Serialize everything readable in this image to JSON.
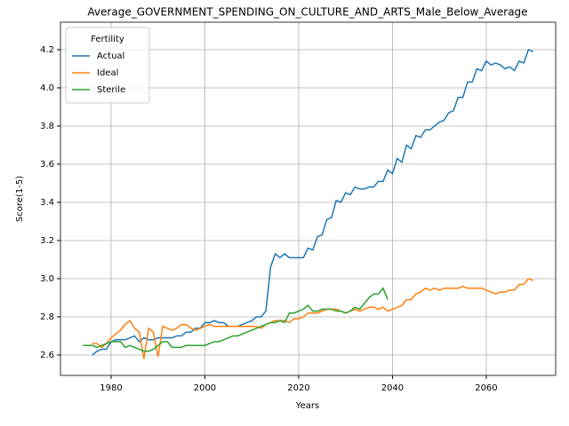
{
  "chart_data": {
    "type": "line",
    "title": "Average_GOVERNMENT_SPENDING_ON_CULTURE_AND_ARTS_Male_Below_Average",
    "x_label": "Years",
    "y_label": "Score(1-5)",
    "legend_title": "Fertility",
    "legend_position": "upper left",
    "grid": true,
    "x": [
      1974,
      1975,
      1976,
      1977,
      1978,
      1979,
      1980,
      1981,
      1982,
      1983,
      1984,
      1985,
      1986,
      1987,
      1988,
      1989,
      1990,
      1991,
      1992,
      1993,
      1994,
      1995,
      1996,
      1997,
      1998,
      1999,
      2000,
      2001,
      2002,
      2003,
      2004,
      2005,
      2006,
      2007,
      2008,
      2009,
      2010,
      2011,
      2012,
      2013,
      2014,
      2015,
      2016,
      2017,
      2018,
      2019,
      2020,
      2021,
      2022,
      2023,
      2024,
      2025,
      2026,
      2027,
      2028,
      2029,
      2030,
      2031,
      2032,
      2033,
      2034,
      2035,
      2036,
      2037,
      2038,
      2039,
      2040,
      2041,
      2042,
      2043,
      2044,
      2045,
      2046,
      2047,
      2048,
      2049,
      2050,
      2051,
      2052,
      2053,
      2054,
      2055,
      2056,
      2057,
      2058,
      2059,
      2060,
      2061,
      2062,
      2063,
      2064,
      2065,
      2066,
      2067,
      2068,
      2069,
      2070
    ],
    "series": [
      {
        "name": "Actual",
        "color": "#1f77b4",
        "values": [
          null,
          null,
          2.6,
          2.62,
          2.63,
          2.63,
          2.67,
          2.68,
          2.68,
          2.68,
          2.69,
          2.7,
          2.67,
          2.69,
          2.68,
          2.68,
          2.69,
          2.69,
          2.69,
          2.69,
          2.7,
          2.7,
          2.72,
          2.72,
          2.74,
          2.74,
          2.77,
          2.77,
          2.78,
          2.77,
          2.77,
          2.75,
          2.75,
          2.75,
          2.76,
          2.77,
          2.78,
          2.8,
          2.8,
          2.83,
          3.06,
          3.13,
          3.11,
          3.13,
          3.11,
          3.11,
          3.11,
          3.11,
          3.16,
          3.15,
          3.22,
          3.23,
          3.31,
          3.32,
          3.41,
          3.4,
          3.45,
          3.44,
          3.48,
          3.47,
          3.47,
          3.48,
          3.48,
          3.51,
          3.51,
          3.57,
          3.55,
          3.63,
          3.61,
          3.7,
          3.68,
          3.75,
          3.74,
          3.78,
          3.78,
          3.8,
          3.82,
          3.83,
          3.87,
          3.88,
          3.95,
          3.95,
          4.03,
          4.03,
          4.1,
          4.09,
          4.14,
          4.12,
          4.13,
          4.12,
          4.1,
          4.11,
          4.09,
          4.14,
          4.13,
          4.2,
          4.19
        ]
      },
      {
        "name": "Ideal",
        "color": "#ff7f0e",
        "values": [
          null,
          null,
          2.66,
          2.66,
          2.64,
          2.66,
          2.69,
          2.71,
          2.73,
          2.76,
          2.78,
          2.74,
          2.72,
          2.58,
          2.74,
          2.72,
          2.59,
          2.75,
          2.74,
          2.73,
          2.74,
          2.76,
          2.76,
          2.74,
          2.73,
          2.74,
          2.75,
          2.76,
          2.75,
          2.75,
          2.75,
          2.75,
          2.75,
          2.75,
          2.75,
          2.75,
          2.75,
          2.75,
          2.74,
          2.76,
          2.77,
          2.78,
          2.78,
          2.78,
          2.77,
          2.79,
          2.79,
          2.8,
          2.82,
          2.82,
          2.82,
          2.83,
          2.84,
          2.84,
          2.84,
          2.83,
          2.82,
          2.83,
          2.84,
          2.83,
          2.84,
          2.85,
          2.85,
          2.84,
          2.85,
          2.83,
          2.84,
          2.85,
          2.86,
          2.89,
          2.89,
          2.92,
          2.93,
          2.95,
          2.94,
          2.95,
          2.94,
          2.95,
          2.95,
          2.95,
          2.95,
          2.96,
          2.95,
          2.95,
          2.95,
          2.95,
          2.94,
          2.93,
          2.92,
          2.93,
          2.93,
          2.94,
          2.94,
          2.97,
          2.97,
          3.0,
          2.99
        ]
      },
      {
        "name": "Sterile",
        "color": "#2ca02c",
        "values": [
          2.65,
          2.65,
          2.65,
          2.64,
          2.65,
          2.66,
          2.67,
          2.67,
          2.67,
          2.64,
          2.65,
          2.64,
          2.63,
          2.62,
          2.62,
          2.63,
          2.65,
          2.67,
          2.67,
          2.64,
          2.64,
          2.64,
          2.65,
          2.65,
          2.65,
          2.65,
          2.65,
          2.66,
          2.67,
          2.67,
          2.68,
          2.69,
          2.7,
          2.7,
          2.71,
          2.72,
          2.73,
          2.74,
          2.75,
          2.76,
          2.77,
          2.77,
          2.78,
          2.77,
          2.82,
          2.82,
          2.83,
          2.84,
          2.86,
          2.83,
          2.83,
          2.84,
          2.84,
          2.84,
          2.83,
          2.83,
          2.82,
          2.83,
          2.85,
          2.84,
          2.87,
          2.9,
          2.92,
          2.92,
          2.95,
          2.89,
          null,
          null,
          null,
          null,
          null,
          null,
          null,
          null,
          null,
          null,
          null,
          null,
          null,
          null,
          null,
          null,
          null,
          null,
          null,
          null,
          null,
          null,
          null,
          null,
          null,
          null,
          null,
          null,
          null,
          null,
          null
        ]
      }
    ],
    "xlim": [
      1969.2,
      2074.8
    ],
    "xticks": [
      1980,
      2000,
      2020,
      2040,
      2060
    ],
    "ylim": [
      2.493,
      4.344
    ],
    "yticks": [
      2.6,
      2.8,
      {
        "value": 3,
        "label": "3.0"
      },
      3.2,
      3.4,
      3.6,
      3.8,
      {
        "value": 4,
        "label": "4.0"
      },
      4.2
    ]
  }
}
